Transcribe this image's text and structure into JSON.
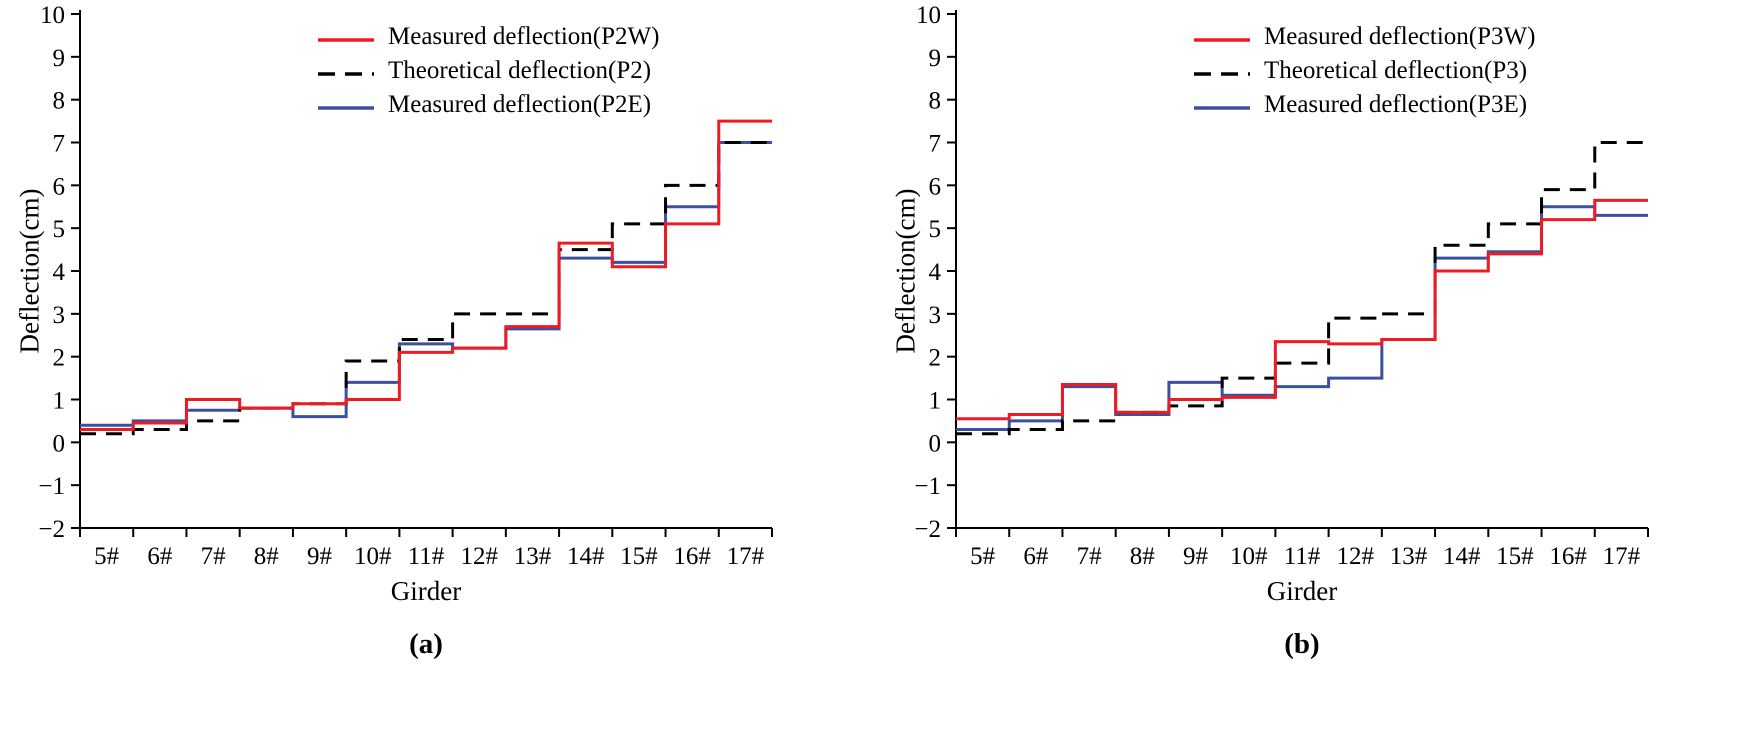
{
  "chart_data": [
    {
      "type": "line",
      "subtype": "step",
      "xlabel": "Girder",
      "ylabel": "Deflection(cm)",
      "caption": "(a)",
      "ylim": [
        -2,
        10
      ],
      "ytick_step": 1,
      "grid": false,
      "legend_position": "top-center-inside",
      "categories": [
        "5#",
        "6#",
        "7#",
        "8#",
        "9#",
        "10#",
        "11#",
        "12#",
        "13#",
        "14#",
        "15#",
        "16#",
        "17#"
      ],
      "series": [
        {
          "name": "Measured deflection(P2W)",
          "color": "#ED1C24",
          "dash": false,
          "values": [
            0.3,
            0.45,
            1.0,
            0.8,
            0.9,
            1.0,
            2.1,
            2.2,
            2.7,
            4.65,
            4.1,
            5.1,
            7.5
          ]
        },
        {
          "name": "Theoretical deflection(P2)",
          "color": "#000000",
          "dash": true,
          "values": [
            0.2,
            0.3,
            0.5,
            0.8,
            0.9,
            1.9,
            2.4,
            3.0,
            3.0,
            4.5,
            5.1,
            6.0,
            7.0
          ]
        },
        {
          "name": "Measured deflection(P2E)",
          "color": "#3C50A2",
          "dash": false,
          "values": [
            0.4,
            0.5,
            0.75,
            0.8,
            0.6,
            1.4,
            2.3,
            2.2,
            2.65,
            4.3,
            4.2,
            5.5,
            7.0
          ]
        }
      ]
    },
    {
      "type": "line",
      "subtype": "step",
      "xlabel": "Girder",
      "ylabel": "Deflection(cm)",
      "caption": "(b)",
      "ylim": [
        -2,
        10
      ],
      "ytick_step": 1,
      "grid": false,
      "legend_position": "top-center-inside",
      "categories": [
        "5#",
        "6#",
        "7#",
        "8#",
        "9#",
        "10#",
        "11#",
        "12#",
        "13#",
        "14#",
        "15#",
        "16#",
        "17#"
      ],
      "series": [
        {
          "name": "Measured deflection(P3W)",
          "color": "#ED1C24",
          "dash": false,
          "values": [
            0.55,
            0.65,
            1.35,
            0.7,
            1.0,
            1.05,
            2.35,
            2.3,
            2.4,
            4.0,
            4.4,
            5.2,
            5.65
          ]
        },
        {
          "name": "Theoretical deflection(P3)",
          "color": "#000000",
          "dash": true,
          "values": [
            0.2,
            0.3,
            0.5,
            0.7,
            0.85,
            1.5,
            1.85,
            2.9,
            3.0,
            4.6,
            5.1,
            5.9,
            7.0
          ]
        },
        {
          "name": "Measured deflection(P3E)",
          "color": "#3C50A2",
          "dash": false,
          "values": [
            0.3,
            0.5,
            1.3,
            0.65,
            1.4,
            1.1,
            1.3,
            1.5,
            2.4,
            4.3,
            4.45,
            5.5,
            5.3
          ]
        }
      ]
    }
  ]
}
